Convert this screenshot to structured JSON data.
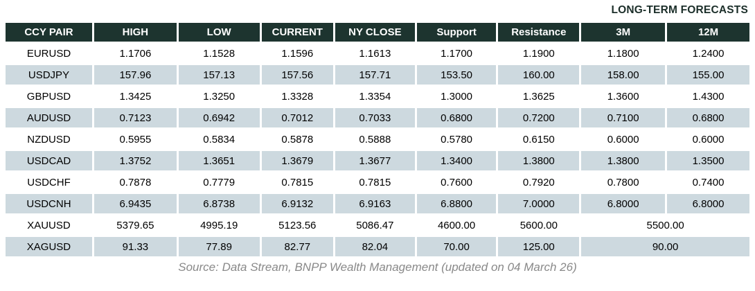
{
  "top": {
    "long_term_label": "LONG-TERM FORECASTS"
  },
  "chart_data": {
    "type": "table",
    "title": "LONG-TERM FORECASTS",
    "columns": [
      "CCY PAIR",
      "HIGH",
      "LOW",
      "CURRENT",
      "NY CLOSE",
      "Support",
      "Resistance",
      "3M",
      "12M"
    ],
    "rows": [
      {
        "pair": "EURUSD",
        "high": "1.1706",
        "low": "1.1528",
        "current": "1.1596",
        "ny_close": "1.1613",
        "support": "1.1700",
        "resistance": "1.1900",
        "m3": "1.1800",
        "m12": "1.2400"
      },
      {
        "pair": "USDJPY",
        "high": "157.96",
        "low": "157.13",
        "current": "157.56",
        "ny_close": "157.71",
        "support": "153.50",
        "resistance": "160.00",
        "m3": "158.00",
        "m12": "155.00"
      },
      {
        "pair": "GBPUSD",
        "high": "1.3425",
        "low": "1.3250",
        "current": "1.3328",
        "ny_close": "1.3354",
        "support": "1.3000",
        "resistance": "1.3625",
        "m3": "1.3600",
        "m12": "1.4300"
      },
      {
        "pair": "AUDUSD",
        "high": "0.7123",
        "low": "0.6942",
        "current": "0.7012",
        "ny_close": "0.7033",
        "support": "0.6800",
        "resistance": "0.7200",
        "m3": "0.7100",
        "m12": "0.6800"
      },
      {
        "pair": "NZDUSD",
        "high": "0.5955",
        "low": "0.5834",
        "current": "0.5878",
        "ny_close": "0.5888",
        "support": "0.5780",
        "resistance": "0.6150",
        "m3": "0.6000",
        "m12": "0.6000"
      },
      {
        "pair": "USDCAD",
        "high": "1.3752",
        "low": "1.3651",
        "current": "1.3679",
        "ny_close": "1.3677",
        "support": "1.3400",
        "resistance": "1.3800",
        "m3": "1.3800",
        "m12": "1.3500"
      },
      {
        "pair": "USDCHF",
        "high": "0.7878",
        "low": "0.7779",
        "current": "0.7815",
        "ny_close": "0.7815",
        "support": "0.7600",
        "resistance": "0.7920",
        "m3": "0.7800",
        "m12": "0.7400"
      },
      {
        "pair": "USDCNH",
        "high": "6.9435",
        "low": "6.8738",
        "current": "6.9132",
        "ny_close": "6.9163",
        "support": "6.8800",
        "resistance": "7.0000",
        "m3": "6.8000",
        "m12": "6.8000"
      },
      {
        "pair": "XAUUSD",
        "high": "5379.65",
        "low": "4995.19",
        "current": "5123.56",
        "ny_close": "5086.47",
        "support": "4600.00",
        "resistance": "5600.00",
        "long_term": "5500.00"
      },
      {
        "pair": "XAGUSD",
        "high": "91.33",
        "low": "77.89",
        "current": "82.77",
        "ny_close": "82.04",
        "support": "70.00",
        "resistance": "125.00",
        "long_term": "90.00"
      }
    ]
  },
  "footer": {
    "source_text": "Source: Data Stream, BNPP Wealth Management (updated on 04 March 26)"
  },
  "colors": {
    "header_bg": "#1d342f",
    "header_text": "#ffffff",
    "row_alt_bg": "#cdd9df",
    "body_text": "#000000",
    "long_term_label_color": "#1b2e29",
    "source_text_color": "#898989"
  }
}
